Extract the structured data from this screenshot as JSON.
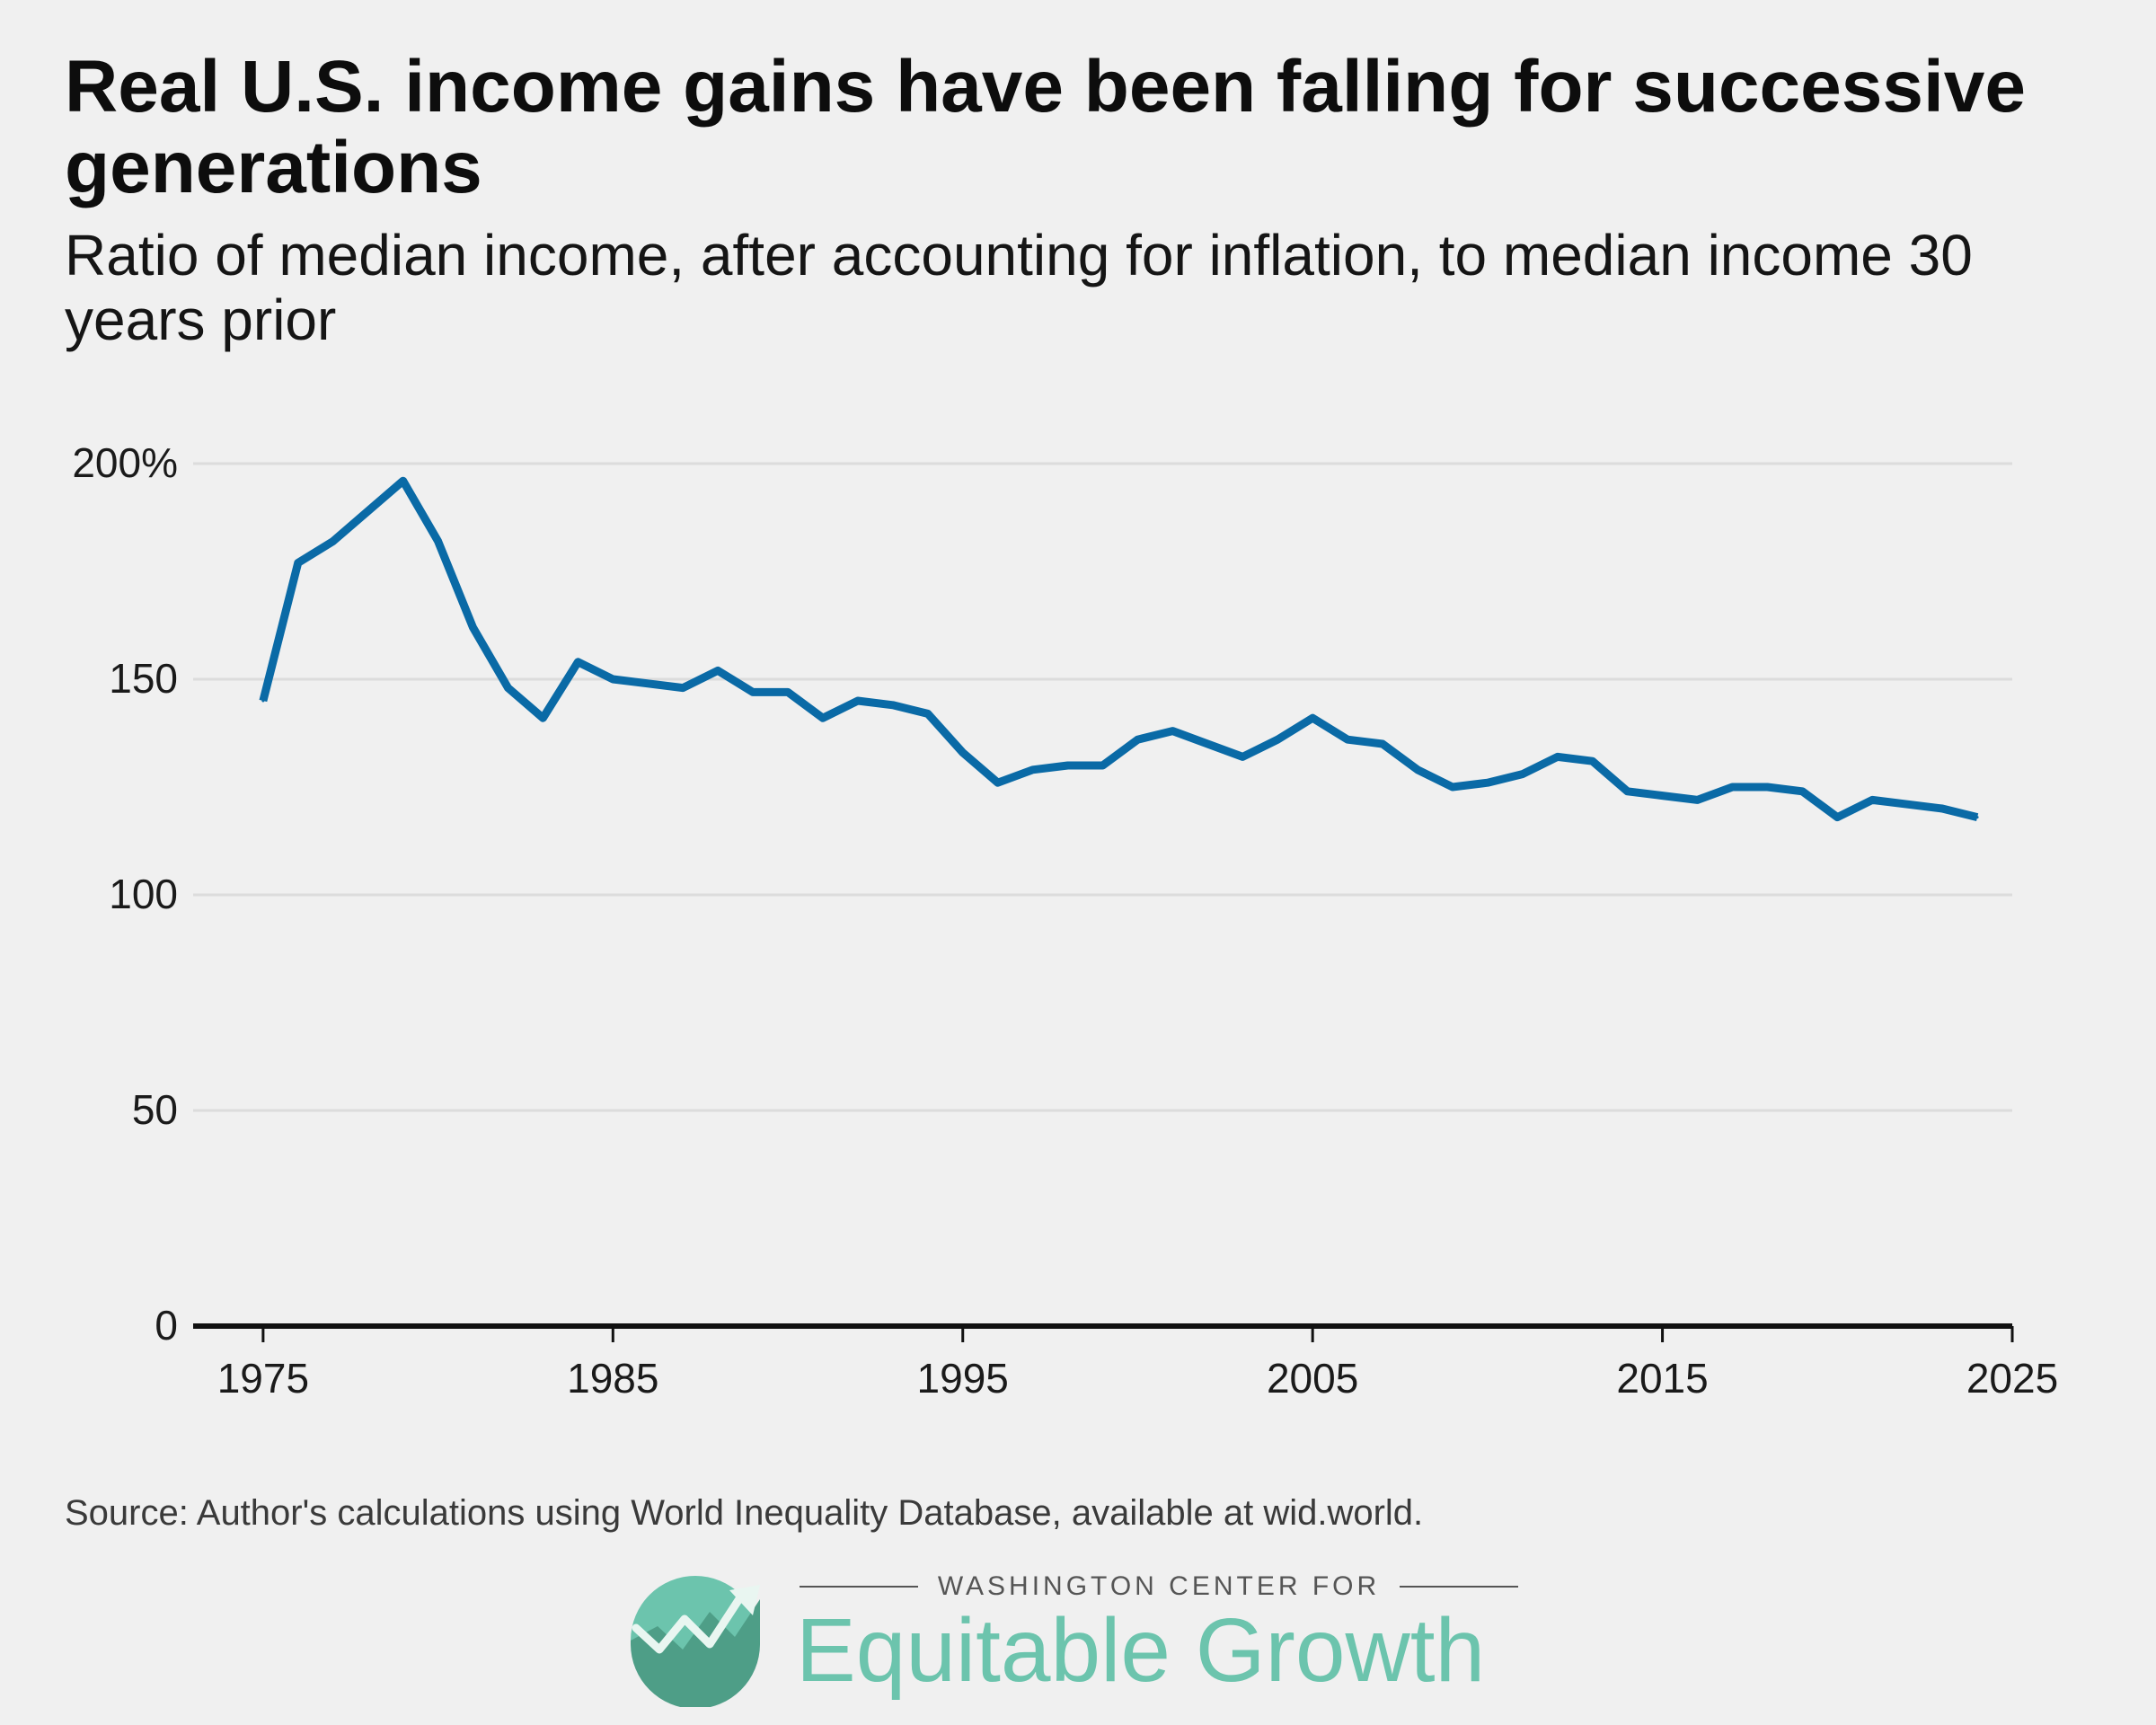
{
  "title": "Real U.S. income gains have been falling for successive generations",
  "subtitle": "Ratio of median income, after accounting for inflation, to median income 30 years prior",
  "source": "Source: Author's calculations using World Inequality Database, available at wid.world.",
  "logo": {
    "org": "WASHINGTON CENTER FOR",
    "name": "Equitable Growth"
  },
  "colors": {
    "line": "#0a6aa6",
    "grid": "#dcdcdc",
    "axis": "#111111",
    "logo": "#6cc4ad"
  },
  "chart_data": {
    "type": "line",
    "title": "Real U.S. income gains have been falling for successive generations",
    "subtitle": "Ratio of median income, after accounting for inflation, to median income 30 years prior",
    "xlabel": "",
    "ylabel": "",
    "xlim": [
      1973,
      2025
    ],
    "ylim": [
      0,
      200
    ],
    "grid": true,
    "x_ticks": [
      1975,
      1985,
      1995,
      2005,
      2015,
      2025
    ],
    "y_ticks": [
      {
        "value": 0,
        "label": "0"
      },
      {
        "value": 50,
        "label": "50"
      },
      {
        "value": 100,
        "label": "100"
      },
      {
        "value": 150,
        "label": "150"
      },
      {
        "value": 200,
        "label": "200%"
      }
    ],
    "series": [
      {
        "x": [
          1975,
          1976,
          1977,
          1978,
          1979,
          1980,
          1981,
          1982,
          1983,
          1984,
          1985,
          1986,
          1987,
          1988,
          1989,
          1990,
          1991,
          1992,
          1993,
          1994,
          1995,
          1996,
          1997,
          1998,
          1999,
          2000,
          2001,
          2002,
          2003,
          2004,
          2005,
          2006,
          2007,
          2008,
          2009,
          2010,
          2011,
          2012,
          2013,
          2014,
          2015,
          2016,
          2017,
          2018,
          2019,
          2020,
          2021,
          2022,
          2023,
          2024
        ],
        "values": [
          145,
          177,
          182,
          189,
          196,
          182,
          162,
          148,
          141,
          154,
          150,
          149,
          148,
          152,
          147,
          147,
          141,
          145,
          144,
          142,
          133,
          126,
          129,
          130,
          130,
          136,
          138,
          135,
          132,
          136,
          141,
          136,
          135,
          129,
          125,
          126,
          128,
          132,
          131,
          124,
          123,
          122,
          125,
          125,
          124,
          118,
          122,
          121,
          120,
          118
        ]
      }
    ]
  }
}
